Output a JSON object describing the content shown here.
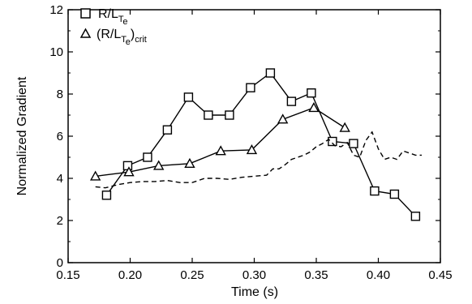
{
  "chart_data": {
    "type": "line",
    "title": "",
    "xlabel": "Time (s)",
    "ylabel": "Normalized Gradient",
    "xlim": [
      0.15,
      0.45
    ],
    "ylim": [
      0,
      12
    ],
    "xticks": [
      "0.15",
      "0.20",
      "0.25",
      "0.30",
      "0.35",
      "0.40",
      "0.45"
    ],
    "yticks": [
      "0",
      "2",
      "4",
      "6",
      "8",
      "10",
      "12"
    ],
    "grid": false,
    "legend_position": "top-left",
    "legend": [
      {
        "marker": "square",
        "main": "R/L",
        "sub1": "T",
        "sub2": "e",
        "tail": "",
        "tail_sub": ""
      },
      {
        "marker": "triangle",
        "main": "(R/L",
        "sub1": "T",
        "sub2": "e",
        "tail": ")",
        "tail_sub": "crit"
      }
    ],
    "series": [
      {
        "marker": "square",
        "style": "solid",
        "x": [
          0.181,
          0.198,
          0.214,
          0.23,
          0.247,
          0.263,
          0.28,
          0.297,
          0.313,
          0.33,
          0.346,
          0.363,
          0.38,
          0.397,
          0.413,
          0.43
        ],
        "y": [
          3.2,
          4.6,
          5.0,
          6.3,
          7.85,
          7.0,
          7.0,
          8.3,
          9.0,
          7.65,
          8.05,
          5.75,
          5.65,
          3.4,
          3.25,
          2.2
        ]
      },
      {
        "marker": "triangle",
        "style": "solid",
        "x": [
          0.172,
          0.199,
          0.223,
          0.248,
          0.273,
          0.298,
          0.323,
          0.348,
          0.373
        ],
        "y": [
          4.1,
          4.3,
          4.6,
          4.7,
          5.3,
          5.35,
          6.8,
          7.35,
          6.4
        ]
      },
      {
        "marker": "none",
        "style": "dashed",
        "x": [
          0.172,
          0.18,
          0.19,
          0.2,
          0.21,
          0.22,
          0.23,
          0.24,
          0.25,
          0.26,
          0.27,
          0.28,
          0.29,
          0.3,
          0.31,
          0.315,
          0.32,
          0.325,
          0.33,
          0.335,
          0.34,
          0.345,
          0.35,
          0.355,
          0.36,
          0.365,
          0.37,
          0.375,
          0.38,
          0.385,
          0.39,
          0.395,
          0.4,
          0.405,
          0.41,
          0.415,
          0.42,
          0.425,
          0.43,
          0.435
        ],
        "y": [
          3.6,
          3.55,
          3.7,
          3.8,
          3.85,
          3.85,
          3.9,
          3.8,
          3.8,
          4.0,
          4.0,
          3.95,
          4.05,
          4.1,
          4.15,
          4.45,
          4.45,
          4.65,
          4.9,
          5.0,
          5.1,
          5.25,
          5.5,
          5.65,
          5.85,
          5.55,
          5.5,
          5.7,
          5.1,
          5.0,
          5.8,
          6.2,
          5.4,
          4.9,
          5.0,
          4.9,
          5.3,
          5.2,
          5.1,
          5.1
        ]
      }
    ]
  }
}
